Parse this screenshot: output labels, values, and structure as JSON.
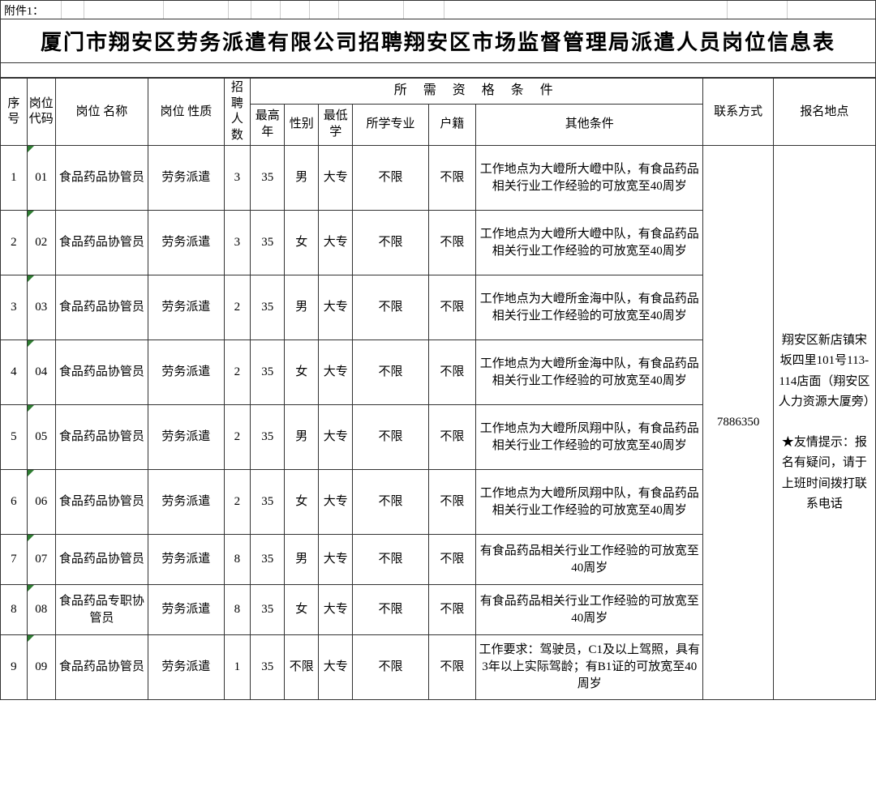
{
  "attachment_label": "附件1：",
  "title": "厦门市翔安区劳务派遣有限公司招聘翔安区市场监督管理局派遣人员岗位信息表",
  "headers": {
    "seq": "序号",
    "code": "岗位代码",
    "name": "岗位\n名称",
    "nature": "岗位\n性质",
    "count": "招聘人数",
    "qualification_group": "所 需 资 格 条 件",
    "age": "最高年",
    "gender": "性别",
    "edu": "最低学",
    "major": "所学专业",
    "hukou": "户籍",
    "other": "其他条件",
    "contact": "联系方式",
    "address": "报名地点"
  },
  "rows": [
    {
      "seq": "1",
      "code": "01",
      "name": "食品药品协管员",
      "nature": "劳务派遣",
      "count": "3",
      "age": "35",
      "gender": "男",
      "edu": "大专",
      "major": "不限",
      "hukou": "不限",
      "other": "工作地点为大嶝所大嶝中队，有食品药品相关行业工作经验的可放宽至40周岁"
    },
    {
      "seq": "2",
      "code": "02",
      "name": "食品药品协管员",
      "nature": "劳务派遣",
      "count": "3",
      "age": "35",
      "gender": "女",
      "edu": "大专",
      "major": "不限",
      "hukou": "不限",
      "other": "工作地点为大嶝所大嶝中队，有食品药品相关行业工作经验的可放宽至40周岁"
    },
    {
      "seq": "3",
      "code": "03",
      "name": "食品药品协管员",
      "nature": "劳务派遣",
      "count": "2",
      "age": "35",
      "gender": "男",
      "edu": "大专",
      "major": "不限",
      "hukou": "不限",
      "other": "工作地点为大嶝所金海中队，有食品药品相关行业工作经验的可放宽至40周岁"
    },
    {
      "seq": "4",
      "code": "04",
      "name": "食品药品协管员",
      "nature": "劳务派遣",
      "count": "2",
      "age": "35",
      "gender": "女",
      "edu": "大专",
      "major": "不限",
      "hukou": "不限",
      "other": "工作地点为大嶝所金海中队，有食品药品相关行业工作经验的可放宽至40周岁"
    },
    {
      "seq": "5",
      "code": "05",
      "name": "食品药品协管员",
      "nature": "劳务派遣",
      "count": "2",
      "age": "35",
      "gender": "男",
      "edu": "大专",
      "major": "不限",
      "hukou": "不限",
      "other": "工作地点为大嶝所凤翔中队，有食品药品相关行业工作经验的可放宽至40周岁"
    },
    {
      "seq": "6",
      "code": "06",
      "name": "食品药品协管员",
      "nature": "劳务派遣",
      "count": "2",
      "age": "35",
      "gender": "女",
      "edu": "大专",
      "major": "不限",
      "hukou": "不限",
      "other": "工作地点为大嶝所凤翔中队，有食品药品相关行业工作经验的可放宽至40周岁"
    },
    {
      "seq": "7",
      "code": "07",
      "name": "食品药品协管员",
      "nature": "劳务派遣",
      "count": "8",
      "age": "35",
      "gender": "男",
      "edu": "大专",
      "major": "不限",
      "hukou": "不限",
      "other": "有食品药品相关行业工作经验的可放宽至40周岁",
      "short": true
    },
    {
      "seq": "8",
      "code": "08",
      "name": "食品药品专职协管员",
      "nature": "劳务派遣",
      "count": "8",
      "age": "35",
      "gender": "女",
      "edu": "大专",
      "major": "不限",
      "hukou": "不限",
      "other": "有食品药品相关行业工作经验的可放宽至40周岁",
      "short": true
    },
    {
      "seq": "9",
      "code": "09",
      "name": "食品药品协管员",
      "nature": "劳务派遣",
      "count": "1",
      "age": "35",
      "gender": "不限",
      "edu": "大专",
      "major": "不限",
      "hukou": "不限",
      "other": "工作要求：驾驶员，C1及以上驾照，具有3年以上实际驾龄；有B1证的可放宽至40周岁"
    }
  ],
  "contact_phone": "7886350",
  "address_text": "翔安区新店镇宋坂四里101号113-114店面（翔安区人力资源大厦旁）",
  "tip_text": "★友情提示：报名有疑问，请于上班时间拨打联系电话"
}
